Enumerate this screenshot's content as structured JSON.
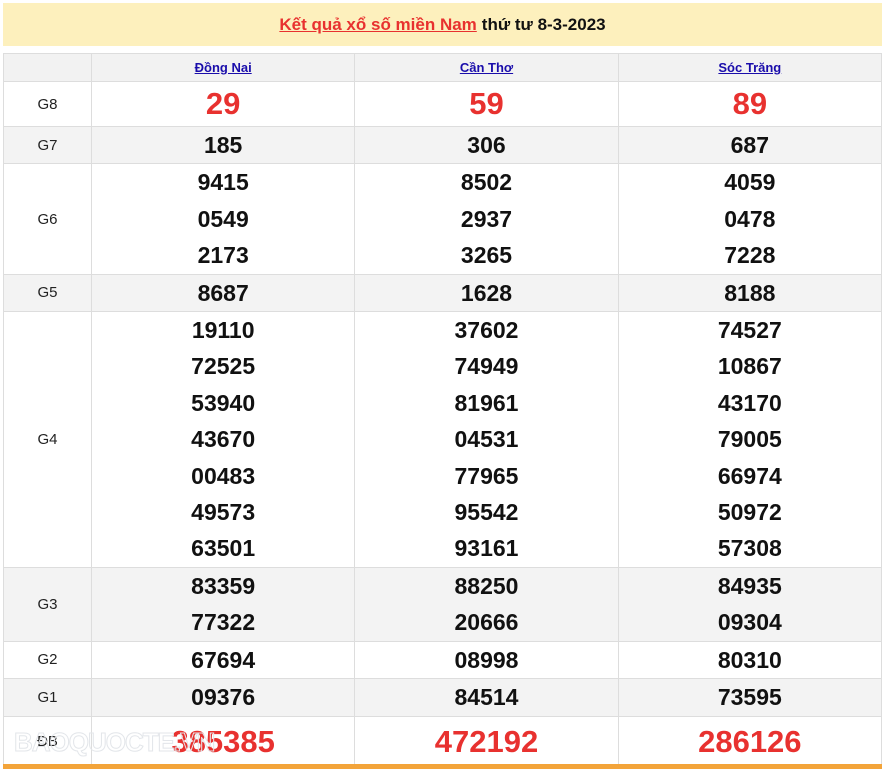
{
  "title": {
    "link": "Kết quả xổ số miền Nam",
    "suffix": "thứ tư 8-3-2023"
  },
  "provinces": [
    "Đồng Nai",
    "Cần Thơ",
    "Sóc Trăng"
  ],
  "prizes": [
    {
      "label": "G8",
      "values": [
        [
          "29"
        ],
        [
          "59"
        ],
        [
          "89"
        ]
      ]
    },
    {
      "label": "G7",
      "values": [
        [
          "185"
        ],
        [
          "306"
        ],
        [
          "687"
        ]
      ]
    },
    {
      "label": "G6",
      "values": [
        [
          "9415",
          "0549",
          "2173"
        ],
        [
          "8502",
          "2937",
          "3265"
        ],
        [
          "4059",
          "0478",
          "7228"
        ]
      ]
    },
    {
      "label": "G5",
      "values": [
        [
          "8687"
        ],
        [
          "1628"
        ],
        [
          "8188"
        ]
      ]
    },
    {
      "label": "G4",
      "values": [
        [
          "19110",
          "72525",
          "53940",
          "43670",
          "00483",
          "49573",
          "63501"
        ],
        [
          "37602",
          "74949",
          "81961",
          "04531",
          "77965",
          "95542",
          "93161"
        ],
        [
          "74527",
          "10867",
          "43170",
          "79005",
          "66974",
          "50972",
          "57308"
        ]
      ]
    },
    {
      "label": "G3",
      "values": [
        [
          "83359",
          "77322"
        ],
        [
          "88250",
          "20666"
        ],
        [
          "84935",
          "09304"
        ]
      ]
    },
    {
      "label": "G2",
      "values": [
        [
          "67694"
        ],
        [
          "08998"
        ],
        [
          "80310"
        ]
      ]
    },
    {
      "label": "G1",
      "values": [
        [
          "09376"
        ],
        [
          "84514"
        ],
        [
          "73595"
        ]
      ]
    },
    {
      "label": "ĐB",
      "values": [
        [
          "385385"
        ],
        [
          "472192"
        ],
        [
          "286126"
        ]
      ]
    }
  ],
  "watermark": "BAOQUOCTE.VN",
  "colors": {
    "accent": "#e8312f",
    "title_bg": "#fdf0bd",
    "bottom_bar": "#f3a43a",
    "link": "#1a0dab"
  }
}
